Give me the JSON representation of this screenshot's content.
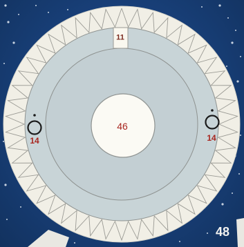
{
  "board": {
    "center_space": "46",
    "top_space": "11",
    "left_space": "14",
    "right_space": "14",
    "corner_label": "48"
  },
  "colors": {
    "background": "#183f78",
    "ring_outer": "#f1efe6",
    "track": "#c7d3d6",
    "hub": "#fbfaf4",
    "number_red": "#a8261f",
    "line": "#8a8f8c"
  },
  "icons": {
    "left_marker": "ring-token-icon",
    "right_marker": "ring-token-icon"
  }
}
